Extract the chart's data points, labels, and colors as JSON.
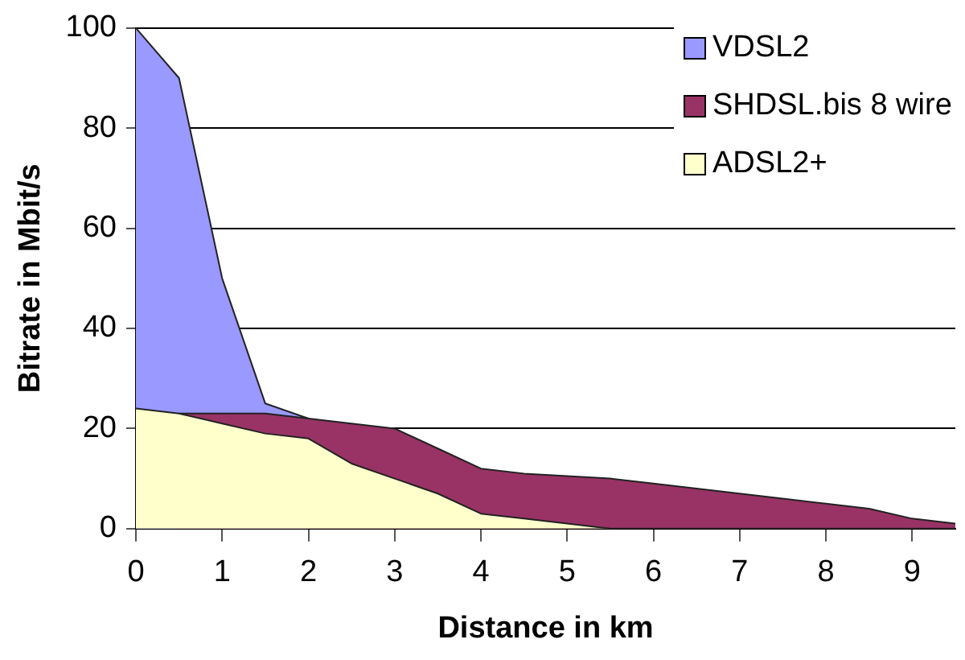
{
  "chart_data": {
    "type": "area",
    "xlabel": "Distance in km",
    "ylabel": "Bitrate in Mbit/s",
    "x": [
      0,
      0.5,
      1,
      1.5,
      2,
      2.5,
      3,
      3.5,
      4,
      4.5,
      5,
      5.5,
      6,
      6.5,
      7,
      7.5,
      8,
      8.5,
      9,
      9.5
    ],
    "series": [
      {
        "name": "VDSL2",
        "color": "#9999ff",
        "values": [
          100,
          90,
          50,
          25,
          22,
          null,
          null,
          null,
          null,
          null,
          null,
          null,
          null,
          null,
          null,
          null,
          null,
          null,
          null,
          null
        ]
      },
      {
        "name": "SHDSL.bis 8 wire",
        "color": "#993366",
        "values": [
          null,
          23,
          23,
          23,
          22,
          21,
          20,
          16,
          12,
          11,
          10.5,
          10,
          9,
          8,
          7,
          6,
          5,
          4,
          2,
          1
        ]
      },
      {
        "name": "ADSL2+",
        "color": "#ffffcc",
        "values": [
          24,
          23,
          21,
          19,
          18,
          13,
          10,
          7,
          3,
          2,
          1,
          0,
          0,
          0,
          0,
          0,
          0,
          0,
          0,
          0
        ]
      }
    ],
    "xlim": [
      0,
      9.5
    ],
    "xticks": [
      0,
      1,
      2,
      3,
      4,
      5,
      6,
      7,
      8,
      9
    ],
    "ylim": [
      0,
      100
    ],
    "yticks": [
      0,
      20,
      40,
      60,
      80,
      100
    ],
    "grid": "y",
    "legend": "top right"
  }
}
